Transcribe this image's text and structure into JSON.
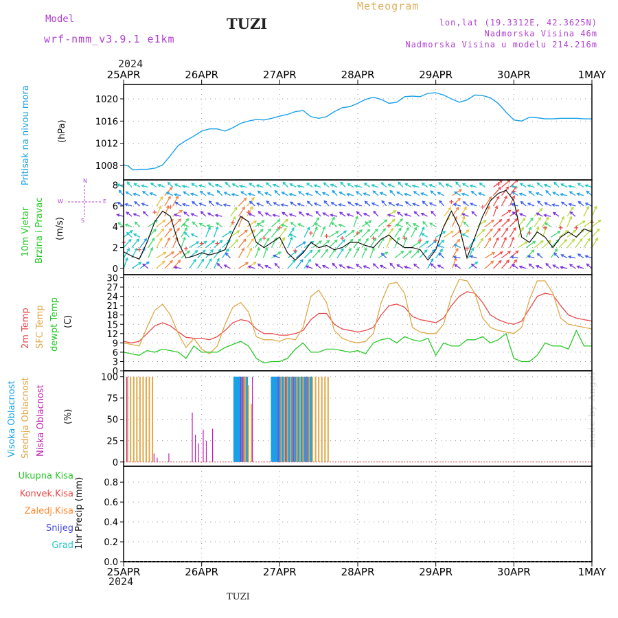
{
  "header": {
    "model_label": "Model",
    "model_name": "wrf-nmm_v3.9.1 e1km",
    "station": "TUZI",
    "meteogram": "Meteogram",
    "coords": "lon,lat (19.3312E, 42.3625N)",
    "elevation": "Nadmorska Visina 46m",
    "elevation_model": "Nadmorska Visina u modelu 214.216m",
    "year": "2024"
  },
  "footer": {
    "year": "2024",
    "station": "TUZI",
    "credit": "made by Angel"
  },
  "colors": {
    "pressure": "#1aa0e8",
    "wind_speed": "#111111",
    "temp2m": "#e84848",
    "sfc_temp": "#e0a848",
    "dewpt": "#28c828",
    "high_cloud": "#1aa0e8",
    "mid_cloud": "#e0a848",
    "low_cloud": "#c020b0",
    "label_purple": "#b040d0",
    "label_orange": "#e0b060"
  },
  "panel_labels": {
    "pressure": [
      "Pritisak na nivou mora",
      "(hPa)"
    ],
    "wind": [
      "10m Vjetar",
      "Brzina i Pravac",
      "(m/s)"
    ],
    "wind_compass": [
      "N",
      "S",
      "W",
      "E"
    ],
    "temp": [
      "2m Temp",
      "SFC Temp",
      "dewpt Temp",
      "(C)"
    ],
    "cloud": [
      "Visoka Oblacnost",
      "Srednja Oblacnost",
      "Niska Oblacnost",
      "(%)"
    ],
    "precip_legend": [
      "Ukupna Kisa",
      "Konvek.Kisa",
      "Zaledj.Kisa",
      "Snijeg",
      "Grad"
    ],
    "precip_unit": "1hr Precip (mm)"
  },
  "chart_data": [
    {
      "type": "line",
      "title": "",
      "ylabel": "Pritisak na nivou mora (hPa)",
      "x_ticks": [
        "25APR",
        "26APR",
        "27APR",
        "28APR",
        "29APR",
        "30APR",
        "1MAY"
      ],
      "yticks": [
        1008,
        1012,
        1016,
        1020
      ],
      "ylim": [
        1005.4,
        1022.6
      ],
      "series": [
        {
          "name": "Pritisak na nivou mora",
          "x": [
            0,
            0.06,
            0.12,
            0.2,
            0.3,
            0.4,
            0.5,
            0.6,
            0.7,
            0.8,
            0.9,
            1.0,
            1.1,
            1.2,
            1.3,
            1.4,
            1.5,
            1.6,
            1.7,
            1.8,
            1.9,
            2.0,
            2.1,
            2.2,
            2.3,
            2.4,
            2.5,
            2.6,
            2.7,
            2.8,
            2.9,
            3.0,
            3.1,
            3.2,
            3.3,
            3.4,
            3.5,
            3.6,
            3.7,
            3.8,
            3.9,
            4.0,
            4.1,
            4.2,
            4.3,
            4.4,
            4.5,
            4.6,
            4.7,
            4.8,
            4.9,
            5.0,
            5.1,
            5.2,
            5.3,
            5.4,
            5.5,
            5.6,
            5.7,
            5.8,
            5.9,
            6.0
          ],
          "values": [
            1008.1,
            1007.9,
            1007.2,
            1007.3,
            1007.3,
            1007.5,
            1008.1,
            1009.8,
            1011.6,
            1012.5,
            1013.3,
            1014.2,
            1014.6,
            1014.6,
            1014.2,
            1014.8,
            1015.6,
            1016.0,
            1016.3,
            1016.2,
            1016.5,
            1016.9,
            1017.2,
            1017.7,
            1017.9,
            1016.8,
            1016.5,
            1016.8,
            1017.7,
            1018.4,
            1018.6,
            1019.2,
            1019.9,
            1020.3,
            1019.9,
            1019.2,
            1019.4,
            1020.4,
            1020.5,
            1020.4,
            1021.0,
            1021.1,
            1020.7,
            1020.0,
            1019.4,
            1019.8,
            1020.7,
            1020.6,
            1020.2,
            1019.2,
            1017.6,
            1016.2,
            1016.0,
            1016.7,
            1016.6,
            1016.4,
            1016.4,
            1016.5,
            1016.5,
            1016.5,
            1016.4,
            1016.4
          ]
        }
      ]
    },
    {
      "type": "line",
      "title": "",
      "ylabel": "10m Vjetar Brzina i Pravac (m/s)",
      "yticks": [
        0,
        2,
        4,
        6,
        8
      ],
      "ylim": [
        -0.6,
        8.5
      ],
      "series": [
        {
          "name": "Brzina",
          "x": [
            0,
            0.1,
            0.2,
            0.3,
            0.4,
            0.5,
            0.6,
            0.7,
            0.8,
            0.9,
            1.0,
            1.1,
            1.2,
            1.3,
            1.4,
            1.5,
            1.6,
            1.7,
            1.8,
            1.9,
            2.0,
            2.1,
            2.2,
            2.3,
            2.4,
            2.5,
            2.6,
            2.7,
            2.8,
            2.9,
            3.0,
            3.1,
            3.2,
            3.3,
            3.4,
            3.5,
            3.6,
            3.7,
            3.8,
            3.9,
            4.0,
            4.1,
            4.2,
            4.3,
            4.4,
            4.5,
            4.6,
            4.7,
            4.8,
            4.9,
            5.0,
            5.1,
            5.2,
            5.3,
            5.4,
            5.5,
            5.6,
            5.7,
            5.8,
            5.9,
            6.0
          ],
          "values": [
            1.6,
            1.2,
            0.9,
            2.5,
            4.5,
            5.5,
            5.0,
            2.5,
            1.0,
            1.2,
            1.5,
            1.3,
            1.5,
            1.8,
            3.5,
            5.0,
            4.5,
            2.5,
            2.0,
            2.5,
            3.0,
            1.5,
            0.8,
            1.5,
            2.5,
            2.0,
            2.2,
            1.8,
            2.0,
            2.5,
            2.5,
            2.2,
            2.0,
            2.8,
            3.2,
            2.5,
            2.0,
            2.0,
            1.8,
            0.8,
            1.8,
            4.0,
            5.5,
            4.0,
            1.0,
            3.0,
            5.0,
            6.5,
            7.2,
            7.5,
            6.5,
            3.0,
            2.5,
            3.5,
            3.0,
            2.0,
            3.0,
            3.5,
            3.0,
            3.8,
            3.5
          ]
        }
      ]
    },
    {
      "type": "line",
      "title": "",
      "ylabel": "Temp (C)",
      "yticks": [
        0,
        3,
        6,
        9,
        12,
        15,
        18,
        21,
        24,
        27,
        30
      ],
      "ylim": [
        0,
        31
      ],
      "x": [
        0,
        0.1,
        0.2,
        0.3,
        0.4,
        0.5,
        0.6,
        0.7,
        0.8,
        0.9,
        1.0,
        1.1,
        1.2,
        1.3,
        1.4,
        1.5,
        1.6,
        1.7,
        1.8,
        1.9,
        2.0,
        2.1,
        2.2,
        2.3,
        2.4,
        2.5,
        2.6,
        2.7,
        2.8,
        2.9,
        3.0,
        3.1,
        3.2,
        3.3,
        3.4,
        3.5,
        3.6,
        3.7,
        3.8,
        3.9,
        4.0,
        4.1,
        4.2,
        4.3,
        4.4,
        4.5,
        4.6,
        4.7,
        4.8,
        4.9,
        5.0,
        5.1,
        5.2,
        5.3,
        5.4,
        5.5,
        5.6,
        5.7,
        5.8,
        5.9,
        6.0
      ],
      "series": [
        {
          "name": "2m Temp",
          "values": [
            9.5,
            9,
            9.5,
            12,
            14.5,
            15.5,
            14.5,
            12.5,
            10.8,
            10.5,
            10.5,
            10,
            11,
            13,
            15.5,
            16.5,
            16,
            13.5,
            12,
            12,
            11.5,
            11.5,
            12,
            13,
            16.5,
            18.5,
            18.5,
            15,
            13.5,
            13,
            12.5,
            13,
            14,
            18,
            21,
            21.5,
            20.5,
            17.5,
            16.5,
            16,
            15.5,
            17,
            21,
            24,
            25.5,
            25,
            22,
            18,
            16.5,
            15.5,
            15,
            16,
            20,
            24,
            25,
            24.5,
            21,
            18,
            17,
            16.5,
            16
          ]
        },
        {
          "name": "SFC Temp",
          "values": [
            9,
            8.5,
            8,
            14,
            19.5,
            21.5,
            18,
            12,
            7.5,
            10.5,
            7,
            5.5,
            8,
            15,
            20.5,
            22,
            19,
            11,
            10,
            10,
            9.5,
            10.5,
            10,
            14,
            24,
            26,
            22,
            13,
            10.5,
            9.5,
            9,
            9.5,
            12,
            22,
            28,
            28.5,
            25,
            14,
            12.5,
            12,
            12,
            15,
            24,
            29.5,
            29,
            25,
            17,
            14,
            13,
            12.5,
            12,
            14,
            23,
            29,
            29,
            25,
            17,
            15,
            14.5,
            14,
            13.5
          ]
        },
        {
          "name": "dewpt Temp",
          "values": [
            6,
            5.5,
            5,
            6.5,
            6,
            7,
            6.5,
            6,
            4,
            8,
            6,
            6,
            6,
            7.5,
            8.5,
            9.5,
            8,
            4,
            2.5,
            3,
            3,
            4,
            7,
            9,
            6,
            6,
            7,
            7,
            6.5,
            6,
            6.5,
            5.5,
            9,
            10,
            10.5,
            9,
            11,
            10,
            9.5,
            10.5,
            5,
            9,
            8,
            8,
            10,
            10,
            11,
            9,
            10,
            12,
            4,
            3,
            3,
            5,
            9,
            8,
            8,
            7,
            13,
            8,
            8
          ]
        }
      ]
    },
    {
      "type": "bar",
      "title": "",
      "ylabel": "Oblacnost (%)",
      "yticks": [
        0,
        25,
        50,
        75,
        100
      ],
      "ylim": [
        -5,
        107
      ],
      "series": [
        {
          "name": "Visoka Oblacnost",
          "x": [
            1.42,
            1.44,
            1.46,
            1.48,
            1.5,
            1.52,
            1.54,
            1.56,
            1.58,
            1.9,
            1.92,
            1.94,
            1.96,
            1.98,
            2.0,
            2.04,
            2.08,
            2.12,
            2.16,
            2.2,
            2.24,
            2.28,
            2.32,
            2.36,
            2.4
          ],
          "values": [
            100,
            100,
            100,
            100,
            100,
            100,
            100,
            100,
            100,
            100,
            100,
            100,
            100,
            100,
            100,
            100,
            100,
            100,
            100,
            100,
            100,
            100,
            100,
            100,
            100
          ]
        },
        {
          "name": "Srednja Oblacnost",
          "x": [
            0.05,
            0.09,
            0.13,
            0.17,
            0.21,
            0.25,
            0.29,
            0.33,
            0.37,
            1.54,
            1.56,
            1.6,
            1.64,
            2.02,
            2.06,
            2.1,
            2.14,
            2.18,
            2.22,
            2.26,
            2.3,
            2.34,
            2.38,
            2.42,
            2.46,
            2.5,
            2.54,
            2.58,
            2.62
          ],
          "values": [
            100,
            100,
            100,
            100,
            100,
            100,
            100,
            100,
            100,
            100,
            100,
            90,
            68,
            100,
            100,
            100,
            100,
            100,
            100,
            100,
            100,
            100,
            100,
            100,
            100,
            100,
            100,
            100,
            100
          ]
        },
        {
          "name": "Niska Oblacnost",
          "x": [
            0.04,
            0.39,
            0.43,
            0.58,
            0.88,
            0.92,
            0.96,
            1.02,
            1.06,
            1.14,
            1.5,
            1.53,
            1.65,
            1.98,
            2.08,
            2.18,
            2.34
          ],
          "values": [
            100,
            10,
            5,
            10,
            58,
            32,
            22,
            38,
            25,
            39,
            100,
            100,
            100,
            100,
            100,
            100,
            100
          ]
        }
      ]
    },
    {
      "type": "bar",
      "title": "",
      "ylabel": "1hr Precip (mm)",
      "x_ticks": [
        "25APR",
        "26APR",
        "27APR",
        "28APR",
        "29APR",
        "30APR",
        "1MAY"
      ],
      "yticks": [
        0.0,
        0.2,
        0.4,
        0.6,
        0.8
      ],
      "ylim": [
        0,
        0.96
      ],
      "series": [
        {
          "name": "Ukupna Kisa",
          "values": []
        },
        {
          "name": "Konvek.Kisa",
          "values": []
        },
        {
          "name": "Zaledj.Kisa",
          "values": []
        },
        {
          "name": "Snijeg",
          "values": []
        },
        {
          "name": "Grad",
          "values": []
        }
      ]
    }
  ]
}
